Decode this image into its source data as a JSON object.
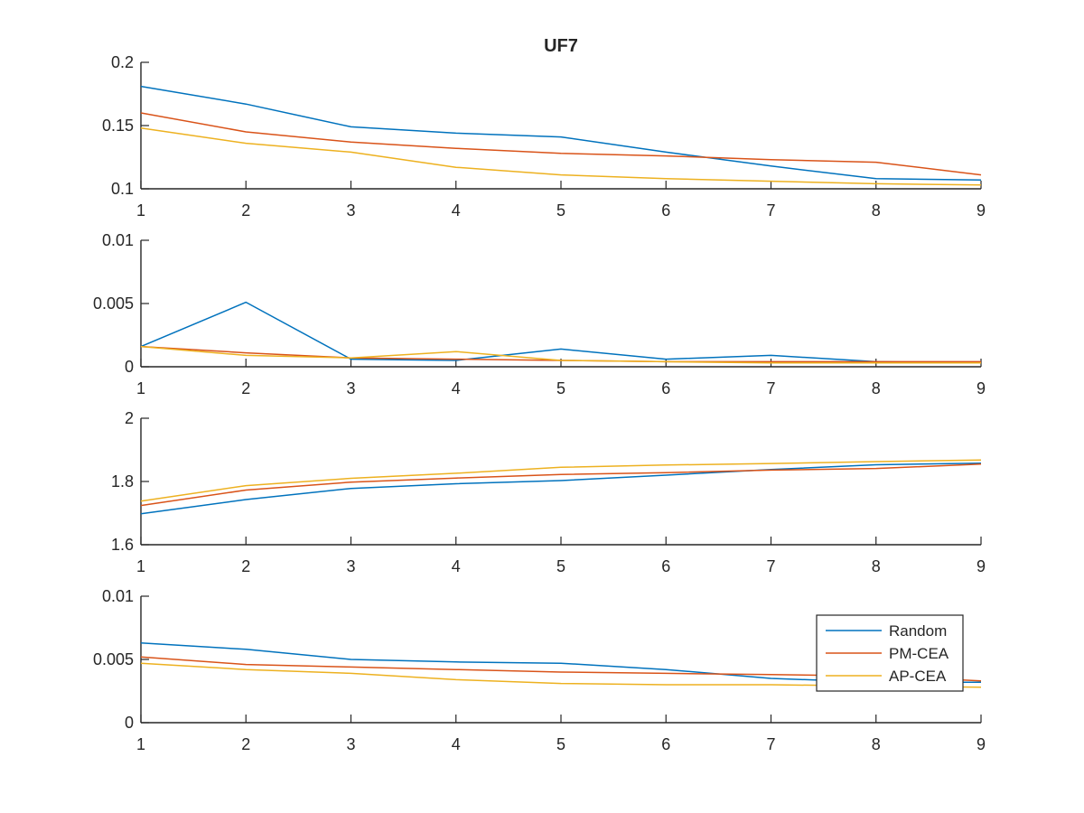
{
  "chart_data": [
    {
      "type": "line",
      "title": "UF7",
      "x": [
        1,
        2,
        3,
        4,
        5,
        6,
        7,
        8,
        9
      ],
      "xlim": [
        1,
        9
      ],
      "ylim": [
        0.1,
        0.2
      ],
      "xticks": [
        "1",
        "2",
        "3",
        "4",
        "5",
        "6",
        "7",
        "8",
        "9"
      ],
      "yticks": [
        {
          "value": 0.1,
          "label": "0.1"
        },
        {
          "value": 0.15,
          "label": "0.15"
        },
        {
          "value": 0.2,
          "label": "0.2"
        }
      ],
      "series": [
        {
          "name": "Random",
          "color": "#0072BD",
          "values": [
            0.181,
            0.167,
            0.149,
            0.144,
            0.141,
            0.129,
            0.118,
            0.108,
            0.107
          ]
        },
        {
          "name": "PM-CEA",
          "color": "#D95319",
          "values": [
            0.16,
            0.145,
            0.137,
            0.132,
            0.128,
            0.126,
            0.123,
            0.121,
            0.111
          ]
        },
        {
          "name": "AP-CEA",
          "color": "#EDB120",
          "values": [
            0.148,
            0.136,
            0.129,
            0.117,
            0.111,
            0.108,
            0.106,
            0.104,
            0.103
          ]
        }
      ],
      "grid": false
    },
    {
      "type": "line",
      "x": [
        1,
        2,
        3,
        4,
        5,
        6,
        7,
        8,
        9
      ],
      "xlim": [
        1,
        9
      ],
      "ylim": [
        0,
        0.01
      ],
      "xticks": [
        "1",
        "2",
        "3",
        "4",
        "5",
        "6",
        "7",
        "8",
        "9"
      ],
      "yticks": [
        {
          "value": 0,
          "label": "0"
        },
        {
          "value": 0.005,
          "label": "0.005"
        },
        {
          "value": 0.01,
          "label": "0.01"
        }
      ],
      "series": [
        {
          "name": "Random",
          "color": "#0072BD",
          "values": [
            0.0016,
            0.0051,
            0.0006,
            0.0005,
            0.0014,
            0.0006,
            0.0009,
            0.0004,
            0.0003
          ]
        },
        {
          "name": "PM-CEA",
          "color": "#D95319",
          "values": [
            0.0016,
            0.0011,
            0.0007,
            0.0006,
            0.0005,
            0.0004,
            0.0004,
            0.0004,
            0.0004
          ]
        },
        {
          "name": "AP-CEA",
          "color": "#EDB120",
          "values": [
            0.0016,
            0.0009,
            0.0007,
            0.0012,
            0.0005,
            0.0004,
            0.0003,
            0.0003,
            0.0003
          ]
        }
      ],
      "grid": false
    },
    {
      "type": "line",
      "x": [
        1,
        2,
        3,
        4,
        5,
        6,
        7,
        8,
        9
      ],
      "xlim": [
        1,
        9
      ],
      "ylim": [
        1.6,
        2
      ],
      "xticks": [
        "1",
        "2",
        "3",
        "4",
        "5",
        "6",
        "7",
        "8",
        "9"
      ],
      "yticks": [
        {
          "value": 1.6,
          "label": "1.6"
        },
        {
          "value": 1.8,
          "label": "1.8"
        },
        {
          "value": 2,
          "label": "2"
        }
      ],
      "series": [
        {
          "name": "Random",
          "color": "#0072BD",
          "values": [
            1.698,
            1.743,
            1.778,
            1.793,
            1.803,
            1.82,
            1.838,
            1.853,
            1.858
          ]
        },
        {
          "name": "PM-CEA",
          "color": "#D95319",
          "values": [
            1.724,
            1.773,
            1.798,
            1.811,
            1.822,
            1.828,
            1.836,
            1.841,
            1.855
          ]
        },
        {
          "name": "AP-CEA",
          "color": "#EDB120",
          "values": [
            1.738,
            1.787,
            1.81,
            1.826,
            1.845,
            1.852,
            1.857,
            1.863,
            1.868
          ]
        }
      ],
      "grid": false
    },
    {
      "type": "line",
      "x": [
        1,
        2,
        3,
        4,
        5,
        6,
        7,
        8,
        9
      ],
      "xlim": [
        1,
        9
      ],
      "ylim": [
        0,
        0.01
      ],
      "xticks": [
        "1",
        "2",
        "3",
        "4",
        "5",
        "6",
        "7",
        "8",
        "9"
      ],
      "yticks": [
        {
          "value": 0,
          "label": "0"
        },
        {
          "value": 0.005,
          "label": "0.005"
        },
        {
          "value": 0.01,
          "label": "0.01"
        }
      ],
      "series": [
        {
          "name": "Random",
          "color": "#0072BD",
          "values": [
            0.0063,
            0.0058,
            0.005,
            0.0048,
            0.0047,
            0.0042,
            0.0035,
            0.0032,
            0.0032
          ]
        },
        {
          "name": "PM-CEA",
          "color": "#D95319",
          "values": [
            0.0052,
            0.0046,
            0.0044,
            0.0042,
            0.004,
            0.0039,
            0.0038,
            0.0037,
            0.0033
          ]
        },
        {
          "name": "AP-CEA",
          "color": "#EDB120",
          "values": [
            0.0047,
            0.0042,
            0.0039,
            0.0034,
            0.0031,
            0.003,
            0.003,
            0.0029,
            0.0028
          ]
        }
      ],
      "grid": false,
      "legend": {
        "placement": "right",
        "entries": [
          {
            "label": "Random",
            "color": "#0072BD"
          },
          {
            "label": "PM-CEA",
            "color": "#D95319"
          },
          {
            "label": "AP-CEA",
            "color": "#EDB120"
          }
        ]
      }
    }
  ]
}
